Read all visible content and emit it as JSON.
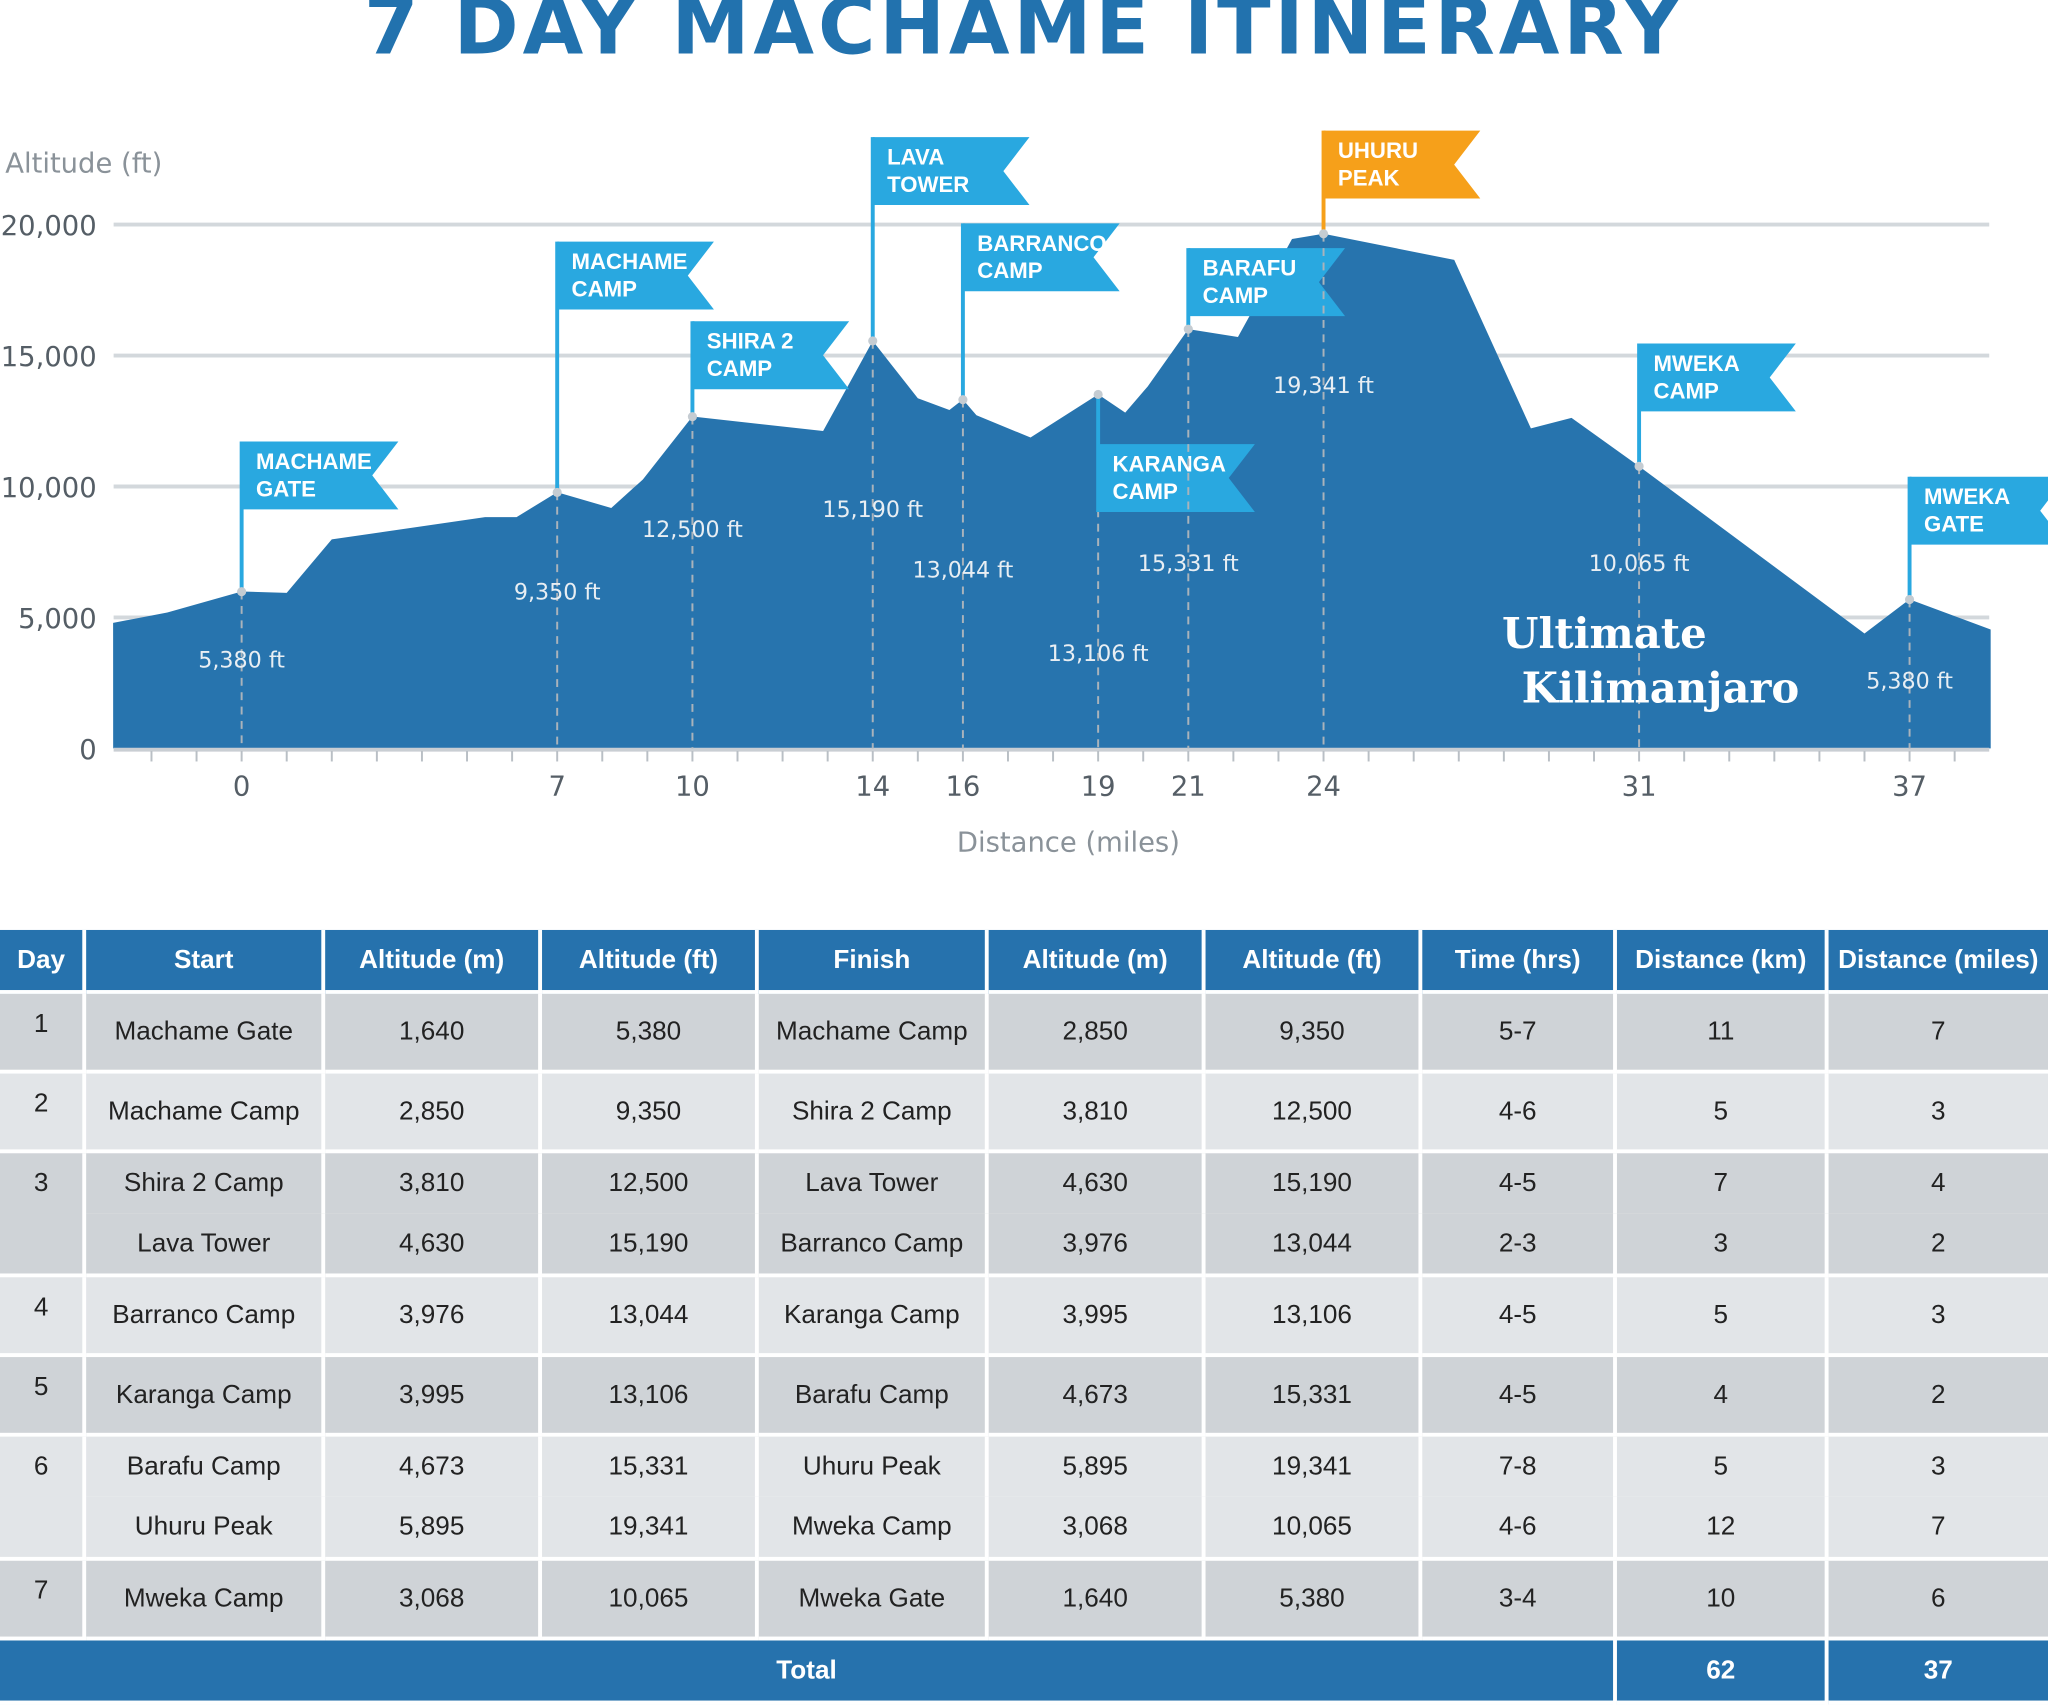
{
  "title": "7 DAY MACHAME ITINERARY",
  "chart_data": {
    "type": "area",
    "ylabel": "Altitude (ft)",
    "xlabel": "Distance (miles)",
    "ylim": [
      0,
      20000
    ],
    "xlim": [
      -2.85,
      38.8
    ],
    "y_ticks": [
      "0",
      "5,000",
      "10,000",
      "15,000",
      "20,000"
    ],
    "y_tick_values": [
      0,
      5000,
      10000,
      15000,
      20000
    ],
    "x_ticks": [
      0,
      7,
      10,
      14,
      16,
      19,
      21,
      24,
      31,
      37
    ],
    "x_minor_tick_step": 1,
    "grid": "horizontal",
    "colors": {
      "area": "#2774ae",
      "flag": "#29a8e0",
      "summit_flag": "#f6a01a",
      "grid": "#d3d8dc",
      "axis_text": "#555e66"
    },
    "profile": [
      [
        -2.85,
        4790
      ],
      [
        -1.65,
        5190
      ],
      [
        0,
        5990
      ],
      [
        1.0,
        5940
      ],
      [
        2.0,
        7980
      ],
      [
        5.4,
        8830
      ],
      [
        6.1,
        8830
      ],
      [
        7.0,
        9780
      ],
      [
        8.2,
        9180
      ],
      [
        8.9,
        10270
      ],
      [
        10.0,
        12670
      ],
      [
        12.9,
        12120
      ],
      [
        14.0,
        15560
      ],
      [
        15.0,
        13370
      ],
      [
        15.7,
        12920
      ],
      [
        16.0,
        13320
      ],
      [
        16.3,
        12720
      ],
      [
        17.5,
        11870
      ],
      [
        19.0,
        13520
      ],
      [
        19.6,
        12820
      ],
      [
        20.1,
        13820
      ],
      [
        21.0,
        16010
      ],
      [
        22.1,
        15710
      ],
      [
        23.3,
        19450
      ],
      [
        24.0,
        19650
      ],
      [
        26.9,
        18650
      ],
      [
        28.6,
        12220
      ],
      [
        29.5,
        12620
      ],
      [
        31.0,
        10770
      ],
      [
        36.0,
        4390
      ],
      [
        37.0,
        5690
      ],
      [
        38.8,
        4540
      ]
    ],
    "waypoints": [
      {
        "name": "MACHAME GATE",
        "lines": [
          "MACHAME",
          "GATE"
        ],
        "mile": 0,
        "label": "5,380 ft",
        "summit": false
      },
      {
        "name": "MACHAME CAMP",
        "lines": [
          "MACHAME",
          "CAMP"
        ],
        "mile": 7,
        "label": "9,350 ft",
        "summit": false
      },
      {
        "name": "SHIRA 2 CAMP",
        "lines": [
          "SHIRA 2",
          "CAMP"
        ],
        "mile": 10,
        "label": "12,500 ft",
        "summit": false
      },
      {
        "name": "LAVA TOWER",
        "lines": [
          "LAVA",
          "TOWER"
        ],
        "mile": 14,
        "label": "15,190 ft",
        "summit": false
      },
      {
        "name": "BARRANCO CAMP",
        "lines": [
          "BARRANCO",
          "CAMP"
        ],
        "mile": 16,
        "label": "13,044 ft",
        "summit": false
      },
      {
        "name": "KARANGA CAMP",
        "lines": [
          "KARANGA",
          "CAMP"
        ],
        "mile": 19,
        "label": "13,106 ft",
        "summit": false
      },
      {
        "name": "BARAFU CAMP",
        "lines": [
          "BARAFU",
          "CAMP"
        ],
        "mile": 21,
        "label": "15,331 ft",
        "summit": false
      },
      {
        "name": "UHURU PEAK",
        "lines": [
          "UHURU",
          "PEAK"
        ],
        "mile": 24,
        "label": "19,341 ft",
        "summit": true
      },
      {
        "name": "MWEKA CAMP",
        "lines": [
          "MWEKA",
          "CAMP"
        ],
        "mile": 31,
        "label": "10,065 ft",
        "summit": false
      },
      {
        "name": "MWEKA GATE",
        "lines": [
          "MWEKA",
          "GATE"
        ],
        "mile": 37,
        "label": "5,380 ft",
        "summit": false
      }
    ],
    "logo": [
      "Ultimate",
      "Kilimanjaro"
    ]
  },
  "table": {
    "headers": [
      "Day",
      "Start",
      "Altitude (m)",
      "Altitude (ft)",
      "Finish",
      "Altitude (m)",
      "Altitude (ft)",
      "Time (hrs)",
      "Distance (km)",
      "Distance (miles)"
    ],
    "days": [
      {
        "day": "1",
        "legs": [
          [
            "Machame Gate",
            "1,640",
            "5,380",
            "Machame Camp",
            "2,850",
            "9,350",
            "5-7",
            "11",
            "7"
          ]
        ]
      },
      {
        "day": "2",
        "legs": [
          [
            "Machame Camp",
            "2,850",
            "9,350",
            "Shira 2 Camp",
            "3,810",
            "12,500",
            "4-6",
            "5",
            "3"
          ]
        ]
      },
      {
        "day": "3",
        "legs": [
          [
            "Shira 2 Camp",
            "3,810",
            "12,500",
            "Lava Tower",
            "4,630",
            "15,190",
            "4-5",
            "7",
            "4"
          ],
          [
            "Lava Tower",
            "4,630",
            "15,190",
            "Barranco Camp",
            "3,976",
            "13,044",
            "2-3",
            "3",
            "2"
          ]
        ]
      },
      {
        "day": "4",
        "legs": [
          [
            "Barranco Camp",
            "3,976",
            "13,044",
            "Karanga Camp",
            "3,995",
            "13,106",
            "4-5",
            "5",
            "3"
          ]
        ]
      },
      {
        "day": "5",
        "legs": [
          [
            "Karanga Camp",
            "3,995",
            "13,106",
            "Barafu Camp",
            "4,673",
            "15,331",
            "4-5",
            "4",
            "2"
          ]
        ]
      },
      {
        "day": "6",
        "legs": [
          [
            "Barafu Camp",
            "4,673",
            "15,331",
            "Uhuru Peak",
            "5,895",
            "19,341",
            "7-8",
            "5",
            "3"
          ],
          [
            "Uhuru Peak",
            "5,895",
            "19,341",
            "Mweka Camp",
            "3,068",
            "10,065",
            "4-6",
            "12",
            "7"
          ]
        ]
      },
      {
        "day": "7",
        "legs": [
          [
            "Mweka Camp",
            "3,068",
            "10,065",
            "Mweka Gate",
            "1,640",
            "5,380",
            "3-4",
            "10",
            "6"
          ]
        ]
      }
    ],
    "total": {
      "label": "Total",
      "km": "62",
      "miles": "37"
    }
  }
}
